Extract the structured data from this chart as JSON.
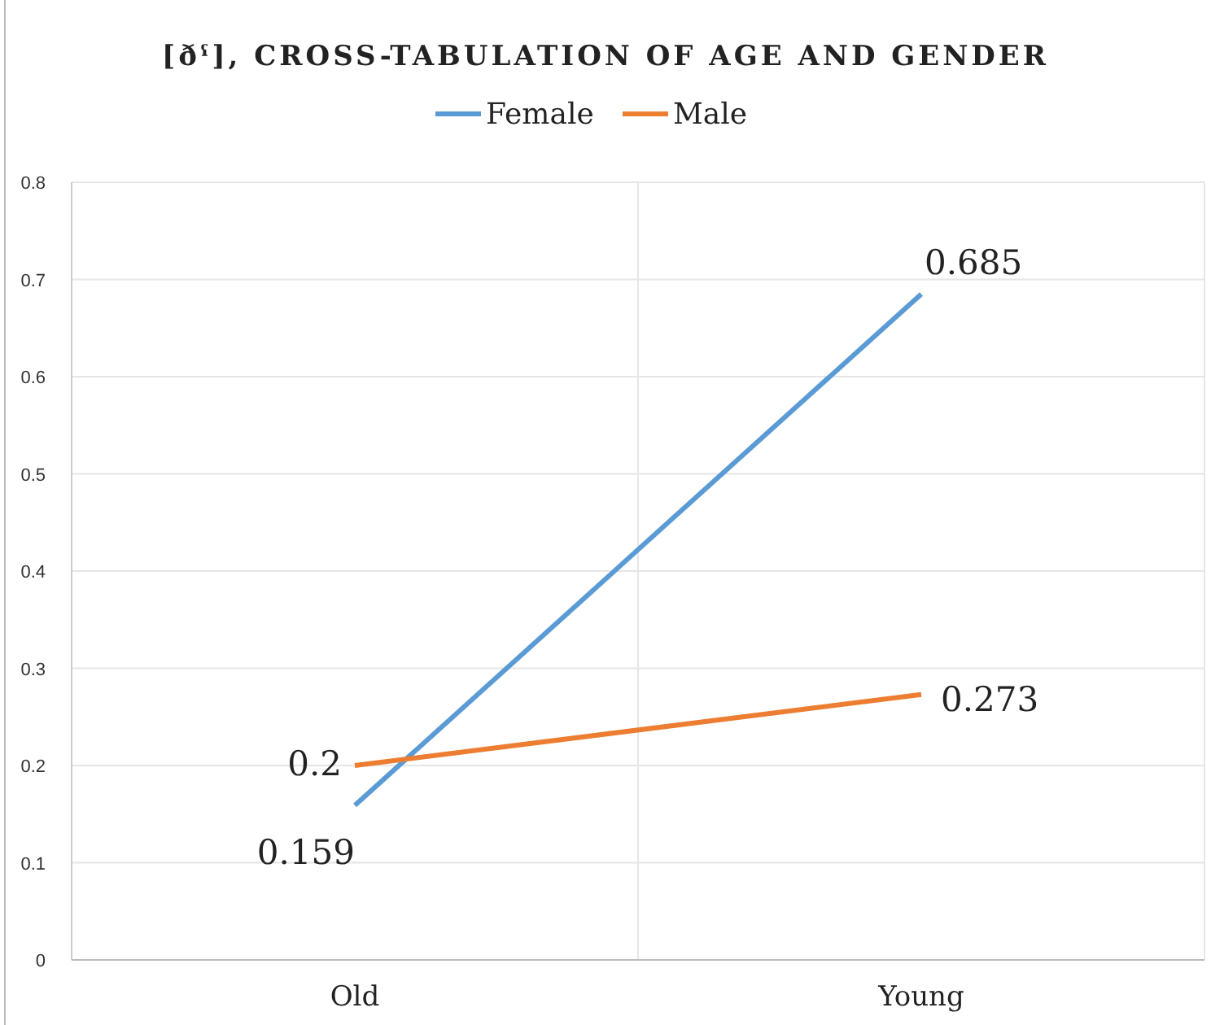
{
  "chart_data": {
    "type": "line",
    "title": "[ðˤ], CROSS-TABULATION OF AGE AND GENDER",
    "categories": [
      "Old",
      "Young"
    ],
    "series": [
      {
        "name": "Female",
        "color": "#5b9bd5",
        "values": [
          0.159,
          0.685
        ]
      },
      {
        "name": "Male",
        "color": "#ed7d31",
        "values": [
          0.2,
          0.273
        ]
      }
    ],
    "ylim": [
      0,
      0.8
    ],
    "yticks": [
      0,
      0.1,
      0.2,
      0.3,
      0.4,
      0.5,
      0.6,
      0.7,
      0.8
    ],
    "grid": true,
    "legend": "top",
    "data_labels": true,
    "marker": "none",
    "line_style": "solid"
  }
}
